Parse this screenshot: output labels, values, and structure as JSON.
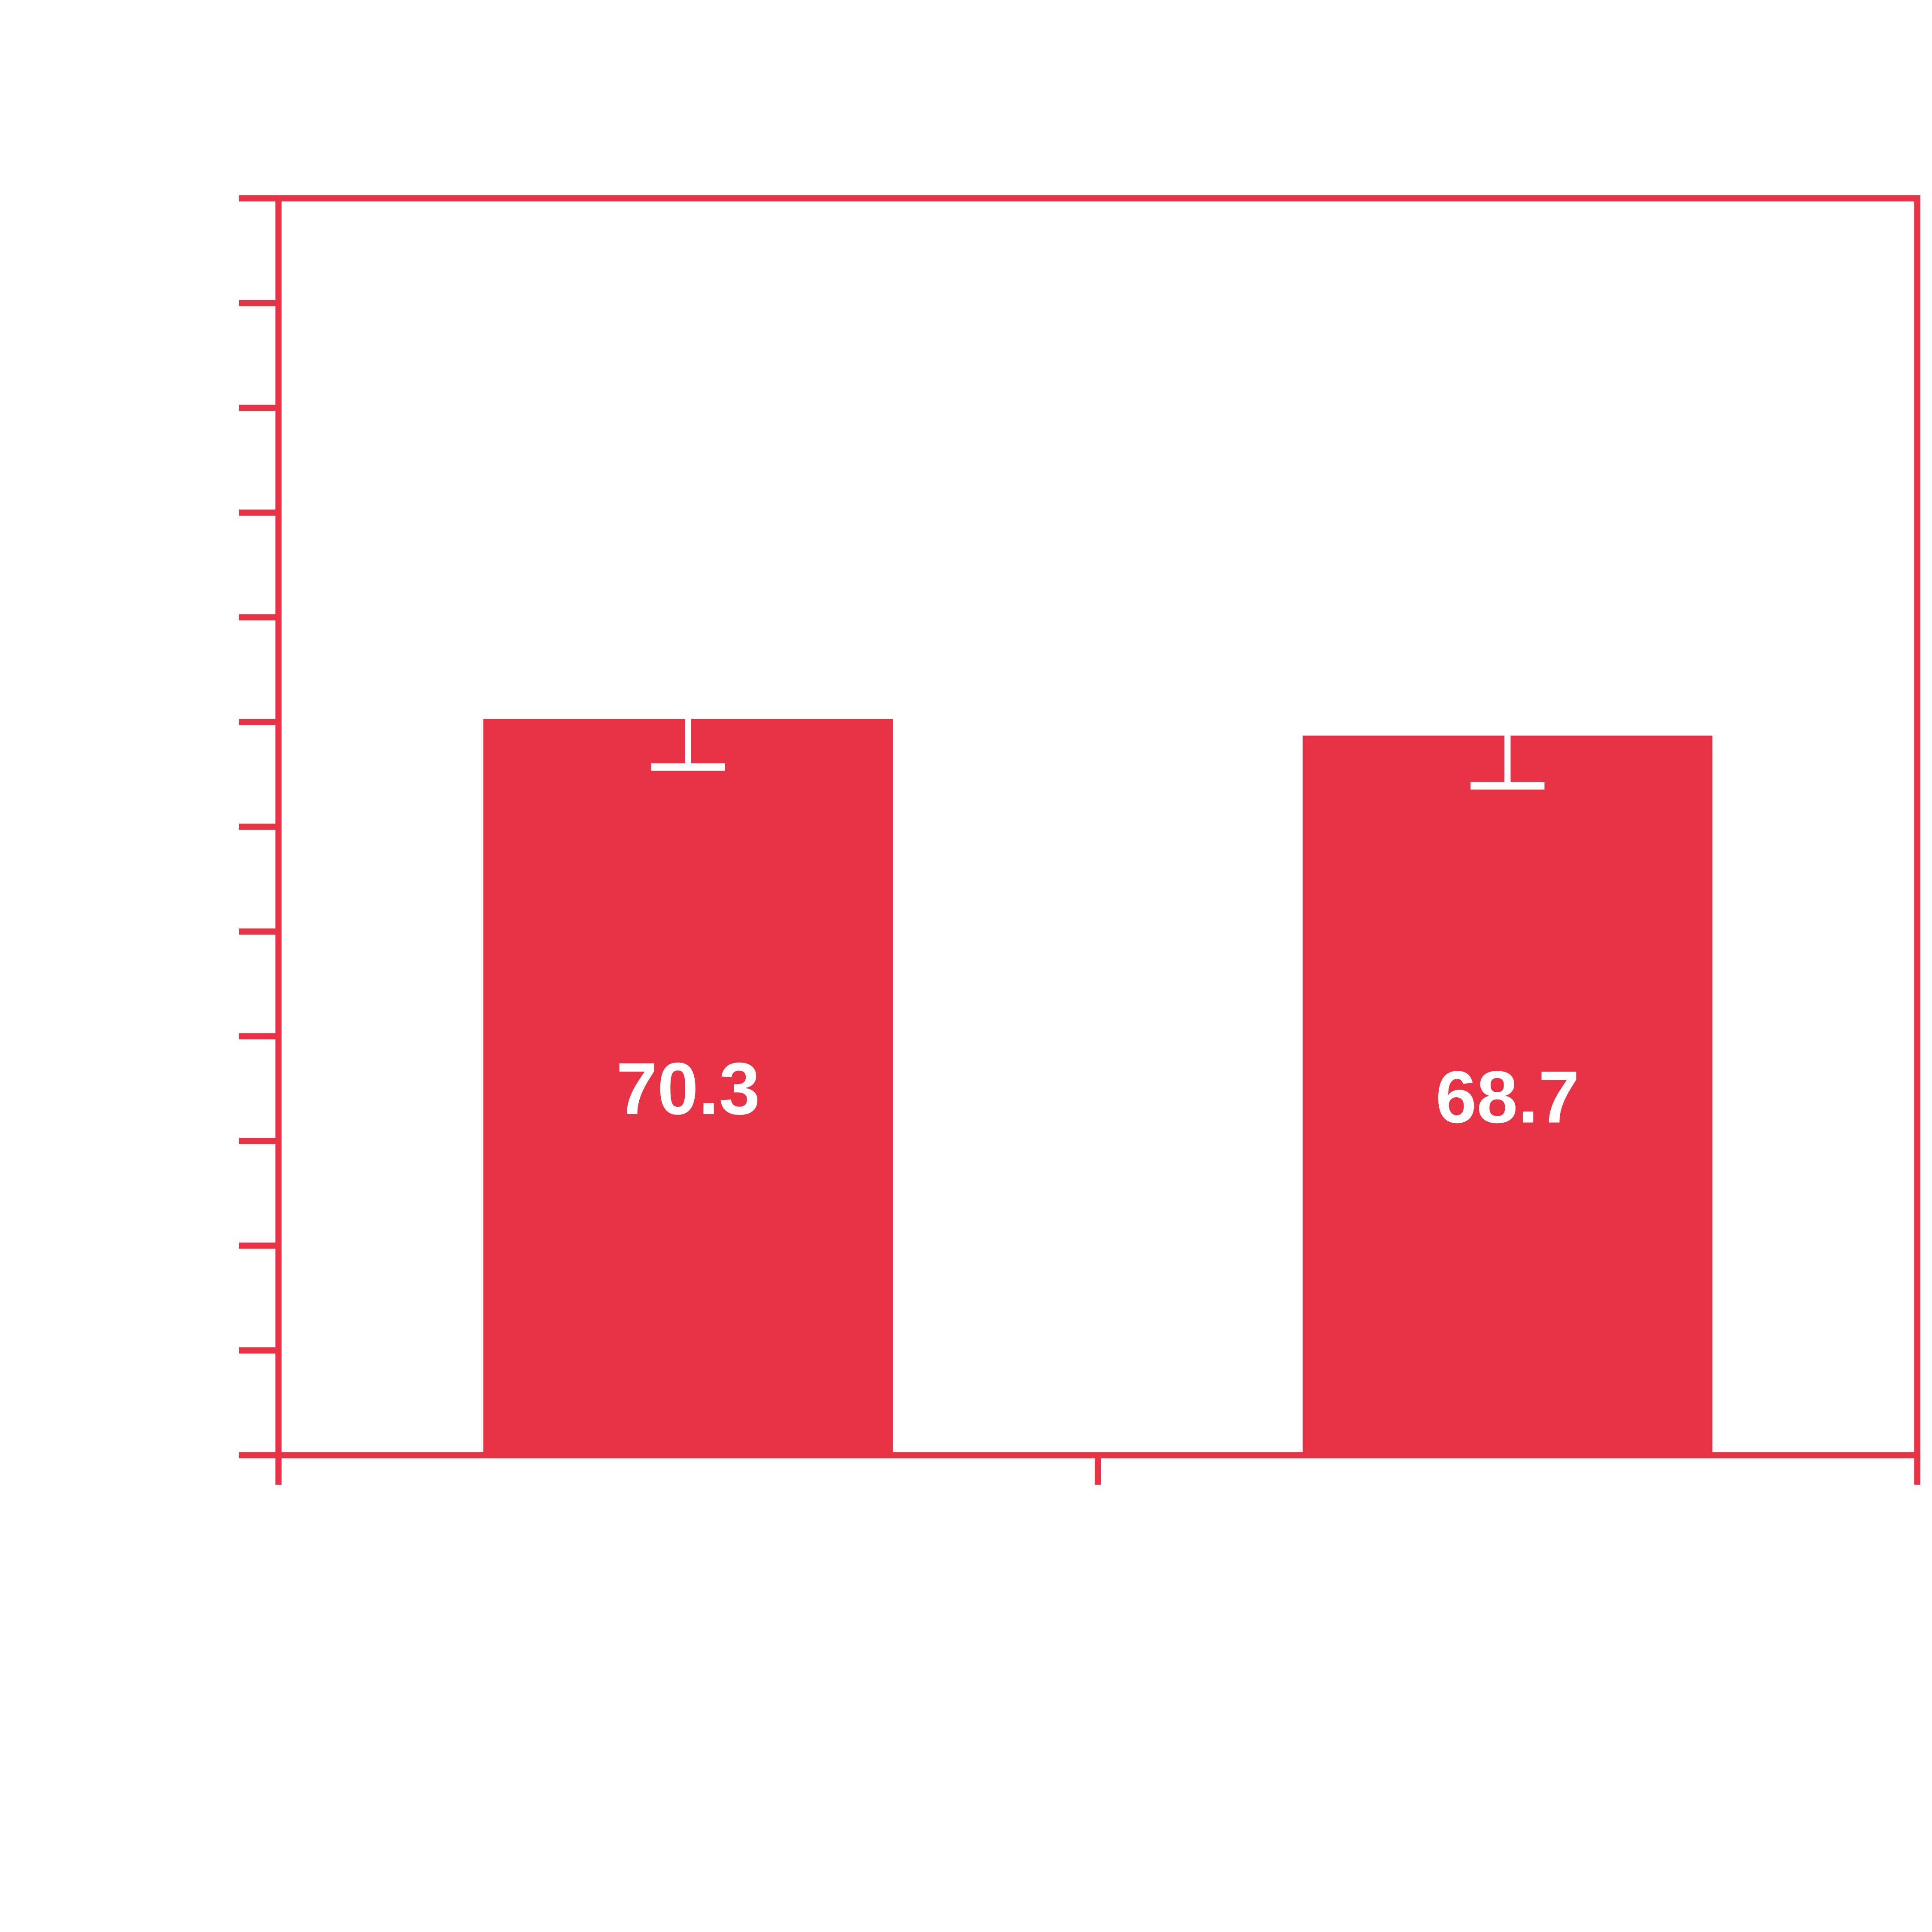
{
  "chart_data": {
    "type": "bar",
    "categories": [
      "",
      ""
    ],
    "values": [
      70.3,
      68.7
    ],
    "error_lower": [
      4.6,
      4.8
    ],
    "data_labels": [
      "70.3",
      "68.7"
    ],
    "title": "",
    "xlabel": "",
    "ylabel": "",
    "ylim": [
      0,
      120
    ],
    "y_tick_step": 10,
    "grid": false,
    "legend": "none",
    "colors": {
      "bar": "#e63446",
      "axis": "#e63446",
      "error_bar": "#ffffff",
      "label": "#ffffff",
      "background": "#fefefe"
    }
  }
}
